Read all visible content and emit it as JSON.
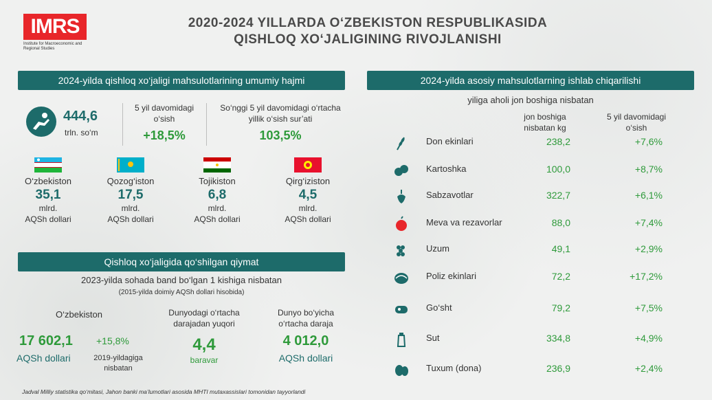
{
  "header": {
    "logo_text": "IMRS",
    "logo_sub": "Institute for Macroeconomic and Regional Studies",
    "title_line1": "2020-2024 YILLARDA O‘ZBEKISTON RESPUBLIKASIDA",
    "title_line2": "QISHLOQ XO‘JALIGINING RIVOJLANISHI"
  },
  "volume": {
    "banner": "2024-yilda qishloq xo‘jaligi mahsulotlarining umumiy hajmi",
    "value": "444,6",
    "unit": "trln. so‘m",
    "growth_label": "5 yil davomidagi o‘sish",
    "growth_value": "+18,5%",
    "rate_label": "So‘nggi 5 yil davomidagi o‘rtacha yillik o‘sish sur’ati",
    "rate_value": "103,5%",
    "countries": [
      {
        "name": "O‘zbekiston",
        "value": "35,1",
        "unit1": "mlrd.",
        "unit2": "AQSh dollari"
      },
      {
        "name": "Qozog‘iston",
        "value": "17,5",
        "unit1": "mlrd.",
        "unit2": "AQSh dollari"
      },
      {
        "name": "Tojikiston",
        "value": "6,8",
        "unit1": "mlrd.",
        "unit2": "AQSh dollari"
      },
      {
        "name": "Qirg‘iziston",
        "value": "4,5",
        "unit1": "mlrd.",
        "unit2": "AQSh dollari"
      }
    ]
  },
  "added": {
    "banner": "Qishloq xo‘jaligida qo‘shilgan qiymat",
    "subtitle": "2023-yilda sohada band bo‘lgan 1 kishiga nisbatan",
    "note": "(2015-yilda doimiy AQSh dollari hisobida)",
    "uz_label": "O‘zbekiston",
    "uz_value": "17 602,1",
    "uz_unit": "AQSh dollari",
    "uz_growth": "+15,8%",
    "uz_growth_note1": "2019-yildagiga",
    "uz_growth_note2": "nisbatan",
    "ratio_label1": "Dunyodagi o‘rtacha",
    "ratio_label2": "darajadan yuqori",
    "ratio_value": "4,4",
    "ratio_unit": "baravar",
    "world_label1": "Dunyo bo‘yicha",
    "world_label2": "o‘rtacha daraja",
    "world_value": "4 012,0",
    "world_unit": "AQSh dollari"
  },
  "production": {
    "banner": "2024-yilda asosiy mahsulotlarning ishlab chiqarilishi",
    "subtitle": "yiliga aholi jon boshiga nisbatan",
    "col1_line1": "jon boshiga",
    "col1_line2": "nisbatan kg",
    "col2_line1": "5 yil davomidagi",
    "col2_line2": "o‘sish",
    "rows": [
      {
        "name": "Don ekinlari",
        "value": "238,2",
        "growth": "+7,6%",
        "icon": "wheat-icon"
      },
      {
        "name": "Kartoshka",
        "value": "100,0",
        "growth": "+8,7%",
        "icon": "potato-icon"
      },
      {
        "name": "Sabzavotlar",
        "value": "322,7",
        "growth": "+6,1%",
        "icon": "vegetable-icon"
      },
      {
        "name": "Meva va rezavorlar",
        "value": "88,0",
        "growth": "+7,4%",
        "icon": "apple-icon"
      },
      {
        "name": "Uzum",
        "value": "49,1",
        "growth": "+2,9%",
        "icon": "grape-icon"
      },
      {
        "name": "Poliz ekinlari",
        "value": "72,2",
        "growth": "+17,2%",
        "icon": "melon-icon"
      },
      {
        "name": "Go‘sht",
        "value": "79,2",
        "growth": "+7,5%",
        "icon": "meat-icon"
      },
      {
        "name": "Sut",
        "value": "334,8",
        "growth": "+4,9%",
        "icon": "milk-icon"
      },
      {
        "name": "Tuxum (dona)",
        "value": "236,9",
        "growth": "+2,4%",
        "icon": "egg-icon"
      }
    ]
  },
  "footer": {
    "source": "Jadval Milliy statistika qo‘mitasi, Jahon banki ma’lumotlari asosida MHTI mutaxassislari tomonidan tayyorlandi"
  },
  "colors": {
    "teal": "#1d6b6a",
    "green": "#2e9a3a",
    "red": "#e8262a"
  }
}
